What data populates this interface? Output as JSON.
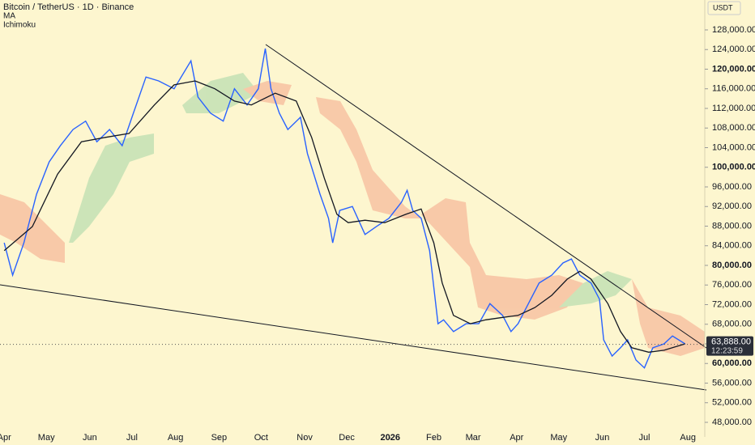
{
  "chart_data": {
    "type": "line",
    "title": "Bitcoin / TetherUS · 1D · Binance",
    "indicators": [
      "MA",
      "Ichimoku"
    ],
    "currency": "USDT",
    "last_price_label": "63,888.00",
    "countdown": "12:23:59",
    "last_price": 63888,
    "x": [
      0,
      6,
      14,
      23,
      32,
      40,
      49,
      58,
      66,
      75,
      84,
      92,
      101,
      110,
      121,
      133,
      138,
      147,
      156,
      164,
      173,
      181,
      186,
      190,
      196,
      202,
      211,
      216,
      225,
      231,
      234,
      239,
      248,
      257,
      265,
      274,
      283,
      287,
      291,
      297,
      303,
      309,
      313,
      320,
      329,
      338,
      346,
      355,
      361,
      366,
      375,
      381,
      390,
      398,
      404,
      410,
      418,
      424,
      427,
      433,
      439,
      444,
      450,
      456,
      462,
      470,
      476,
      485
    ],
    "series": [
      {
        "name": "Price",
        "color": "#2962ff",
        "values": [
          84600,
          78000,
          84600,
          94500,
          101100,
          104400,
          107700,
          109400,
          105200,
          107700,
          104400,
          111000,
          118400,
          117600,
          116000,
          121700,
          114300,
          111000,
          109400,
          116000,
          112700,
          116000,
          124200,
          116000,
          111000,
          107700,
          110200,
          102800,
          94500,
          89600,
          84600,
          91200,
          92000,
          86300,
          87900,
          89600,
          92900,
          95300,
          91200,
          89600,
          83000,
          68100,
          68900,
          66500,
          68100,
          68100,
          72200,
          69800,
          66500,
          68100,
          73100,
          76400,
          78000,
          80500,
          81300,
          78000,
          76400,
          73100,
          64800,
          61500,
          63200,
          64800,
          60700,
          59100,
          63200,
          64000,
          65600,
          64000
        ]
      },
      {
        "name": "MA",
        "color": "#131722",
        "x": [
          0,
          20,
          38,
          55,
          72,
          89,
          107,
          121,
          136,
          150,
          164,
          176,
          193,
          208,
          219,
          228,
          237,
          245,
          257,
          271,
          286,
          297,
          306,
          312,
          320,
          332,
          343,
          355,
          366,
          378,
          390,
          401,
          410,
          418,
          430,
          439,
          447,
          459,
          470,
          485
        ],
        "values": [
          83000,
          87900,
          98600,
          105200,
          106100,
          106900,
          112700,
          116800,
          117600,
          116000,
          113500,
          112700,
          115100,
          113500,
          106100,
          97800,
          90400,
          88700,
          89200,
          88700,
          90400,
          91500,
          84600,
          76400,
          69800,
          68100,
          68900,
          69400,
          69800,
          71400,
          73900,
          77200,
          78800,
          77200,
          72200,
          66500,
          63200,
          62300,
          62700,
          64000
        ]
      }
    ],
    "xlim": [
      -3,
      499
    ],
    "xticks": [
      {
        "value": 0,
        "label": "Apr"
      },
      {
        "value": 30,
        "label": "May"
      },
      {
        "value": 61,
        "label": "Jun"
      },
      {
        "value": 91,
        "label": "Jul"
      },
      {
        "value": 122,
        "label": "Aug"
      },
      {
        "value": 153,
        "label": "Sep"
      },
      {
        "value": 183,
        "label": "Oct"
      },
      {
        "value": 214,
        "label": "Nov"
      },
      {
        "value": 244,
        "label": "Dec"
      },
      {
        "value": 275,
        "label": "2026"
      },
      {
        "value": 306,
        "label": "Feb"
      },
      {
        "value": 334,
        "label": "Mar"
      },
      {
        "value": 365,
        "label": "Apr"
      },
      {
        "value": 395,
        "label": "May"
      },
      {
        "value": 426,
        "label": "Jun"
      },
      {
        "value": 456,
        "label": "Jul"
      },
      {
        "value": 487,
        "label": "Aug"
      }
    ],
    "ylim": [
      45030,
      134100
    ],
    "yticks": [
      {
        "value": 48000,
        "label": "48,000.00"
      },
      {
        "value": 52000,
        "label": "52,000.00"
      },
      {
        "value": 56000,
        "label": "56,000.00"
      },
      {
        "value": 60000,
        "label": "60,000.00"
      },
      {
        "value": 64000,
        "label": "64,000.00"
      },
      {
        "value": 68000,
        "label": "68,000.00"
      },
      {
        "value": 72000,
        "label": "72,000.00"
      },
      {
        "value": 76000,
        "label": "76,000.00"
      },
      {
        "value": 80000,
        "label": "80,000.00"
      },
      {
        "value": 84000,
        "label": "84,000.00"
      },
      {
        "value": 88000,
        "label": "88,000.00"
      },
      {
        "value": 92000,
        "label": "92,000.00"
      },
      {
        "value": 96000,
        "label": "96,000.00"
      },
      {
        "value": 100000,
        "label": "100,000.00"
      },
      {
        "value": 104000,
        "label": "104,000.00"
      },
      {
        "value": 108000,
        "label": "108,000.00"
      },
      {
        "value": 112000,
        "label": "112,000.00"
      },
      {
        "value": 116000,
        "label": "116,000.00"
      },
      {
        "value": 120000,
        "label": "120,000.00"
      },
      {
        "value": 124000,
        "label": "124,000.00"
      },
      {
        "value": 128000,
        "label": "128,000.00"
      }
    ]
  }
}
